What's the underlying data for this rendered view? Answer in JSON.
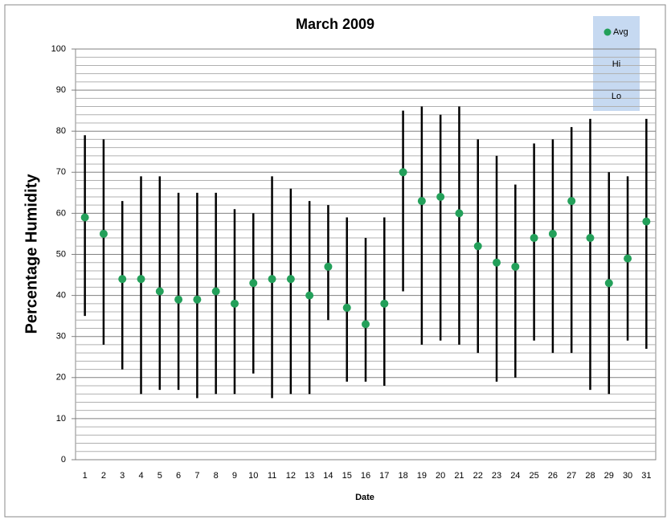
{
  "chart_data": {
    "type": "hilo",
    "title": "March 2009",
    "xlabel": "Date",
    "ylabel": "Percentage Humidity",
    "categories": [
      "1",
      "2",
      "3",
      "4",
      "5",
      "6",
      "7",
      "8",
      "9",
      "10",
      "11",
      "12",
      "13",
      "14",
      "15",
      "16",
      "17",
      "18",
      "19",
      "20",
      "21",
      "22",
      "23",
      "24",
      "25",
      "26",
      "27",
      "28",
      "29",
      "30",
      "31"
    ],
    "series": [
      {
        "name": "Avg",
        "color": "#23a05a",
        "values": [
          59,
          55,
          44,
          44,
          41,
          39,
          39,
          41,
          38,
          43,
          44,
          44,
          40,
          47,
          37,
          33,
          38,
          70,
          63,
          64,
          60,
          52,
          48,
          47,
          54,
          55,
          63,
          54,
          43,
          49,
          58
        ]
      },
      {
        "name": "Hi",
        "color": "#000000",
        "values": [
          79,
          78,
          63,
          69,
          69,
          65,
          65,
          65,
          61,
          60,
          69,
          66,
          63,
          62,
          59,
          54,
          59,
          85,
          86,
          84,
          86,
          78,
          74,
          67,
          77,
          78,
          81,
          83,
          70,
          69,
          83
        ]
      },
      {
        "name": "Lo",
        "color": "#000000",
        "values": [
          35,
          28,
          22,
          16,
          17,
          17,
          15,
          16,
          16,
          21,
          15,
          16,
          16,
          34,
          19,
          19,
          18,
          41,
          28,
          29,
          28,
          26,
          19,
          20,
          29,
          26,
          26,
          17,
          16,
          29,
          27
        ]
      }
    ],
    "ylim": [
      0,
      100
    ],
    "yticks": [
      0,
      10,
      20,
      30,
      40,
      50,
      60,
      70,
      80,
      90,
      100
    ],
    "minor_yticks": [
      2,
      4,
      6,
      8,
      12,
      14,
      16,
      18,
      22,
      24,
      26,
      28,
      32,
      34,
      36,
      38,
      42,
      44,
      46,
      48,
      52,
      54,
      56,
      58,
      62,
      64,
      66,
      68,
      72,
      74,
      76,
      78,
      82,
      84,
      86,
      88,
      92,
      94,
      96,
      98
    ],
    "grid": true,
    "legend": "top-right"
  }
}
